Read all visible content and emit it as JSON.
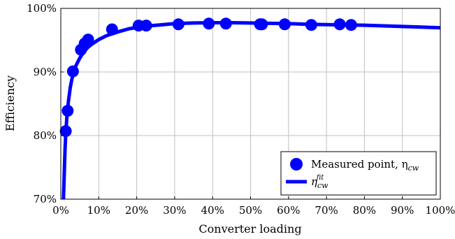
{
  "chart_data": {
    "type": "line",
    "xlabel": "Converter loading",
    "ylabel": "Efficiency",
    "xlim": [
      0,
      100
    ],
    "ylim": [
      70,
      100
    ],
    "x_ticks": [
      "0%",
      "10%",
      "20%",
      "30%",
      "40%",
      "50%",
      "60%",
      "70%",
      "80%",
      "90%",
      "100%"
    ],
    "y_ticks": [
      "70%",
      "80%",
      "90%",
      "100%"
    ],
    "grid": true,
    "legend_position": "bottom-right",
    "colors": {
      "series": "#0000ff",
      "grid": "#c0c0c0",
      "axis": "#000000"
    },
    "series": [
      {
        "name": "Measured point, η_cw",
        "kind": "scatter",
        "x": [
          1.3,
          1.8,
          3.2,
          5.3,
          6.3,
          7.2,
          13.5,
          20.5,
          22.5,
          31,
          39,
          43.5,
          52.5,
          53,
          59,
          66,
          73.5,
          76.5
        ],
        "y": [
          80.7,
          83.9,
          90.1,
          93.5,
          94.5,
          95.1,
          96.7,
          97.3,
          97.3,
          97.5,
          97.6,
          97.6,
          97.5,
          97.5,
          97.5,
          97.4,
          97.5,
          97.4
        ]
      },
      {
        "name": "η_cw^fit",
        "kind": "line",
        "x": [
          0.7,
          0.9,
          1.1,
          1.3,
          1.6,
          2,
          2.5,
          3,
          3.5,
          4,
          5,
          6,
          7,
          8,
          10,
          12,
          15,
          18,
          22,
          26,
          30,
          35,
          40,
          45,
          50,
          55,
          60,
          65,
          70,
          75,
          80,
          85,
          90,
          95,
          100
        ],
        "y": [
          70,
          73.9,
          77.7,
          80.3,
          82.9,
          85.4,
          87.6,
          89.1,
          90.2,
          91,
          92.2,
          93.1,
          93.8,
          94.3,
          95.1,
          95.7,
          96.3,
          96.8,
          97.2,
          97.4,
          97.6,
          97.7,
          97.75,
          97.75,
          97.7,
          97.65,
          97.6,
          97.5,
          97.45,
          97.4,
          97.35,
          97.25,
          97.15,
          97.05,
          96.95
        ]
      }
    ]
  },
  "legend": {
    "measured_label": "Measured point, η",
    "measured_sub": "cw",
    "fit_label": "η",
    "fit_sub": "cw",
    "fit_sup": "fit"
  }
}
